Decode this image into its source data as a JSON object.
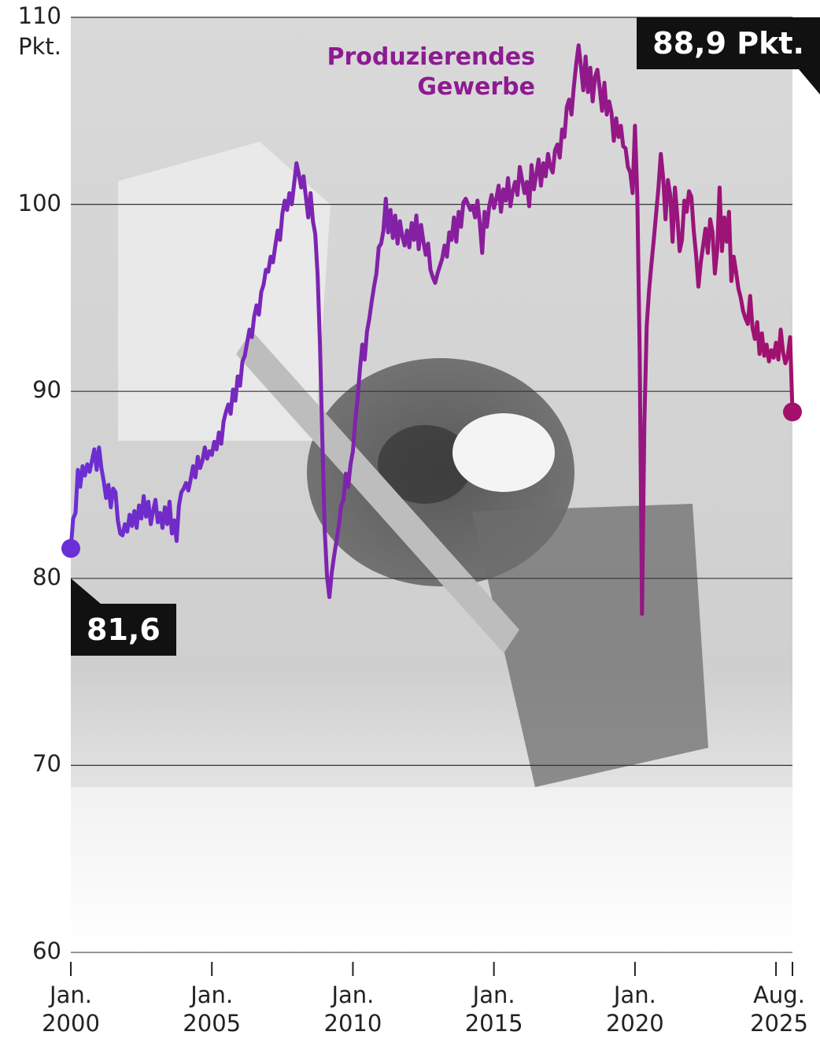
{
  "chart_data": {
    "type": "line",
    "y_unit": "Pkt.",
    "x": [
      "2000-01",
      "2000-02",
      "2000-03",
      "2000-04",
      "2000-05",
      "2000-06",
      "2000-07",
      "2000-08",
      "2000-09",
      "2000-10",
      "2000-11",
      "2000-12",
      "2001-01",
      "2001-02",
      "2001-03",
      "2001-04",
      "2001-05",
      "2001-06",
      "2001-07",
      "2001-08",
      "2001-09",
      "2001-10",
      "2001-11",
      "2001-12",
      "2002-01",
      "2002-02",
      "2002-03",
      "2002-04",
      "2002-05",
      "2002-06",
      "2002-07",
      "2002-08",
      "2002-09",
      "2002-10",
      "2002-11",
      "2002-12",
      "2003-01",
      "2003-02",
      "2003-03",
      "2003-04",
      "2003-05",
      "2003-06",
      "2003-07",
      "2003-08",
      "2003-09",
      "2003-10",
      "2003-11",
      "2003-12",
      "2004-01",
      "2004-02",
      "2004-03",
      "2004-04",
      "2004-05",
      "2004-06",
      "2004-07",
      "2004-08",
      "2004-09",
      "2004-10",
      "2004-11",
      "2004-12",
      "2005-01",
      "2005-02",
      "2005-03",
      "2005-04",
      "2005-05",
      "2005-06",
      "2005-07",
      "2005-08",
      "2005-09",
      "2005-10",
      "2005-11",
      "2005-12",
      "2006-01",
      "2006-02",
      "2006-03",
      "2006-04",
      "2006-05",
      "2006-06",
      "2006-07",
      "2006-08",
      "2006-09",
      "2006-10",
      "2006-11",
      "2006-12",
      "2007-01",
      "2007-02",
      "2007-03",
      "2007-04",
      "2007-05",
      "2007-06",
      "2007-07",
      "2007-08",
      "2007-09",
      "2007-10",
      "2007-11",
      "2007-12",
      "2008-01",
      "2008-02",
      "2008-03",
      "2008-04",
      "2008-05",
      "2008-06",
      "2008-07",
      "2008-08",
      "2008-09",
      "2008-10",
      "2008-11",
      "2008-12",
      "2009-01",
      "2009-02",
      "2009-03",
      "2009-04",
      "2009-05",
      "2009-06",
      "2009-07",
      "2009-08",
      "2009-09",
      "2009-10",
      "2009-11",
      "2009-12",
      "2010-01",
      "2010-02",
      "2010-03",
      "2010-04",
      "2010-05",
      "2010-06",
      "2010-07",
      "2010-08",
      "2010-09",
      "2010-10",
      "2010-11",
      "2010-12",
      "2011-01",
      "2011-02",
      "2011-03",
      "2011-04",
      "2011-05",
      "2011-06",
      "2011-07",
      "2011-08",
      "2011-09",
      "2011-10",
      "2011-11",
      "2011-12",
      "2012-01",
      "2012-02",
      "2012-03",
      "2012-04",
      "2012-05",
      "2012-06",
      "2012-07",
      "2012-08",
      "2012-09",
      "2012-10",
      "2012-11",
      "2012-12",
      "2013-01",
      "2013-02",
      "2013-03",
      "2013-04",
      "2013-05",
      "2013-06",
      "2013-07",
      "2013-08",
      "2013-09",
      "2013-10",
      "2013-11",
      "2013-12",
      "2014-01",
      "2014-02",
      "2014-03",
      "2014-04",
      "2014-05",
      "2014-06",
      "2014-07",
      "2014-08",
      "2014-09",
      "2014-10",
      "2014-11",
      "2014-12",
      "2015-01",
      "2015-02",
      "2015-03",
      "2015-04",
      "2015-05",
      "2015-06",
      "2015-07",
      "2015-08",
      "2015-09",
      "2015-10",
      "2015-11",
      "2015-12",
      "2016-01",
      "2016-02",
      "2016-03",
      "2016-04",
      "2016-05",
      "2016-06",
      "2016-07",
      "2016-08",
      "2016-09",
      "2016-10",
      "2016-11",
      "2016-12",
      "2017-01",
      "2017-02",
      "2017-03",
      "2017-04",
      "2017-05",
      "2017-06",
      "2017-07",
      "2017-08",
      "2017-09",
      "2017-10",
      "2017-11",
      "2017-12",
      "2018-01",
      "2018-02",
      "2018-03",
      "2018-04",
      "2018-05",
      "2018-06",
      "2018-07",
      "2018-08",
      "2018-09",
      "2018-10",
      "2018-11",
      "2018-12",
      "2019-01",
      "2019-02",
      "2019-03",
      "2019-04",
      "2019-05",
      "2019-06",
      "2019-07",
      "2019-08",
      "2019-09",
      "2019-10",
      "2019-11",
      "2019-12",
      "2020-01",
      "2020-02",
      "2020-03",
      "2020-04",
      "2020-05",
      "2020-06",
      "2020-07",
      "2020-08",
      "2020-09",
      "2020-10",
      "2020-11",
      "2020-12",
      "2021-01",
      "2021-02",
      "2021-03",
      "2021-04",
      "2021-05",
      "2021-06",
      "2021-07",
      "2021-08",
      "2021-09",
      "2021-10",
      "2021-11",
      "2021-12",
      "2022-01",
      "2022-02",
      "2022-03",
      "2022-04",
      "2022-05",
      "2022-06",
      "2022-07",
      "2022-08",
      "2022-09",
      "2022-10",
      "2022-11",
      "2022-12",
      "2023-01",
      "2023-02",
      "2023-03",
      "2023-04",
      "2023-05",
      "2023-06",
      "2023-07",
      "2023-08",
      "2023-09",
      "2023-10",
      "2023-11",
      "2023-12",
      "2024-01",
      "2024-02",
      "2024-03",
      "2024-04",
      "2024-05",
      "2024-06",
      "2024-07",
      "2024-08",
      "2024-09",
      "2024-10",
      "2024-11",
      "2024-12",
      "2025-01",
      "2025-02",
      "2025-03",
      "2025-04",
      "2025-05",
      "2025-06",
      "2025-07",
      "2025-08"
    ],
    "series": [
      {
        "name": "Produzierendes Gewerbe",
        "colors": [
          "#6a2fd6",
          "#a2106c"
        ],
        "values": [
          81.6,
          83.2,
          83.5,
          85.8,
          84.9,
          86.0,
          85.5,
          86.1,
          85.7,
          86.3,
          86.9,
          85.8,
          87.0,
          85.9,
          85.2,
          84.3,
          85.0,
          83.8,
          84.8,
          84.6,
          83.1,
          82.4,
          82.3,
          82.9,
          82.5,
          83.4,
          82.8,
          83.6,
          82.7,
          83.9,
          83.2,
          84.4,
          83.3,
          84.1,
          82.9,
          83.6,
          84.2,
          83.0,
          83.5,
          82.7,
          83.8,
          82.9,
          84.1,
          82.4,
          83.1,
          82.0,
          83.9,
          84.6,
          84.8,
          85.1,
          84.7,
          85.3,
          86.0,
          85.4,
          86.5,
          85.9,
          86.3,
          87.0,
          86.4,
          86.8,
          86.6,
          87.3,
          86.9,
          87.8,
          87.2,
          88.4,
          88.9,
          89.3,
          88.8,
          90.1,
          89.5,
          90.8,
          90.3,
          91.6,
          91.9,
          92.6,
          93.3,
          92.9,
          94.0,
          94.6,
          94.1,
          95.3,
          95.7,
          96.5,
          96.4,
          97.2,
          96.9,
          97.8,
          98.6,
          98.1,
          99.5,
          100.2,
          99.7,
          100.6,
          100.0,
          101.1,
          102.2,
          101.6,
          100.9,
          101.5,
          100.4,
          99.3,
          100.6,
          99.1,
          98.4,
          96.2,
          92.5,
          87.4,
          82.6,
          80.1,
          79.0,
          80.3,
          81.2,
          82.0,
          82.8,
          83.9,
          84.2,
          85.6,
          84.9,
          86.1,
          86.8,
          88.4,
          89.6,
          91.2,
          92.5,
          91.7,
          93.2,
          93.9,
          94.8,
          95.6,
          96.3,
          97.7,
          97.9,
          98.6,
          100.3,
          98.5,
          99.7,
          98.2,
          99.4,
          97.9,
          99.1,
          98.3,
          97.8,
          98.6,
          97.7,
          99.0,
          98.1,
          99.4,
          97.6,
          98.9,
          98.0,
          97.3,
          97.9,
          96.5,
          96.1,
          95.8,
          96.3,
          96.7,
          97.1,
          97.8,
          97.2,
          98.5,
          98.1,
          99.3,
          98.0,
          99.6,
          98.8,
          100.1,
          100.3,
          100.0,
          99.7,
          99.9,
          99.3,
          100.2,
          99.0,
          97.4,
          99.6,
          98.8,
          99.9,
          100.5,
          99.8,
          100.3,
          101.0,
          99.6,
          100.8,
          100.2,
          101.4,
          99.9,
          100.7,
          101.2,
          100.5,
          102.0,
          101.3,
          100.6,
          101.2,
          99.9,
          102.1,
          100.8,
          101.6,
          102.4,
          101.0,
          102.2,
          101.5,
          102.7,
          102.0,
          101.7,
          102.9,
          103.2,
          102.5,
          104.0,
          103.6,
          105.2,
          105.6,
          104.8,
          106.3,
          107.5,
          108.5,
          107.4,
          106.1,
          107.9,
          106.0,
          107.3,
          105.5,
          106.8,
          107.2,
          106.2,
          105.0,
          106.5,
          104.8,
          105.5,
          104.9,
          103.4,
          104.6,
          103.6,
          104.2,
          103.1,
          103.0,
          102.0,
          101.7,
          100.6,
          104.2,
          100.4,
          92.0,
          78.1,
          88.3,
          93.5,
          95.4,
          96.8,
          98.1,
          99.5,
          100.9,
          102.7,
          101.4,
          99.2,
          101.3,
          100.5,
          98.0,
          100.9,
          99.4,
          97.5,
          98.1,
          100.2,
          99.6,
          100.7,
          100.4,
          98.6,
          97.3,
          95.6,
          96.9,
          97.8,
          98.7,
          97.4,
          99.2,
          98.5,
          96.3,
          97.6,
          100.9,
          97.5,
          99.3,
          98.0,
          99.6,
          95.9,
          97.2,
          96.4,
          95.5,
          95.0,
          94.3,
          93.9,
          93.6,
          95.1,
          93.4,
          92.8,
          93.7,
          92.0,
          93.1,
          91.9,
          92.5,
          91.6,
          92.2,
          91.8,
          92.6,
          91.7,
          93.3,
          92.1,
          91.5,
          91.9,
          92.9,
          88.9
        ]
      }
    ],
    "xlim": [
      "2000-01",
      "2025-08"
    ],
    "xticks": [
      {
        "value": "2000-01",
        "label": "Jan. 2000"
      },
      {
        "value": "2005-01",
        "label": "Jan. 2005"
      },
      {
        "value": "2010-01",
        "label": "Jan. 2010"
      },
      {
        "value": "2015-01",
        "label": "Jan. 2015"
      },
      {
        "value": "2020-01",
        "label": "Jan. 2020"
      },
      {
        "value": "2025-01",
        "label": null
      },
      {
        "value": "2025-08",
        "label": "Aug. 2025"
      }
    ],
    "ylim": [
      60,
      110
    ],
    "yticks": [
      60,
      70,
      80,
      90,
      100,
      110
    ],
    "grid": true,
    "annotations": [
      {
        "x": "2000-01",
        "value": 81.6,
        "label": "81,6"
      },
      {
        "x": "2025-08",
        "value": 88.9,
        "label": "88,9 Pkt."
      }
    ]
  }
}
